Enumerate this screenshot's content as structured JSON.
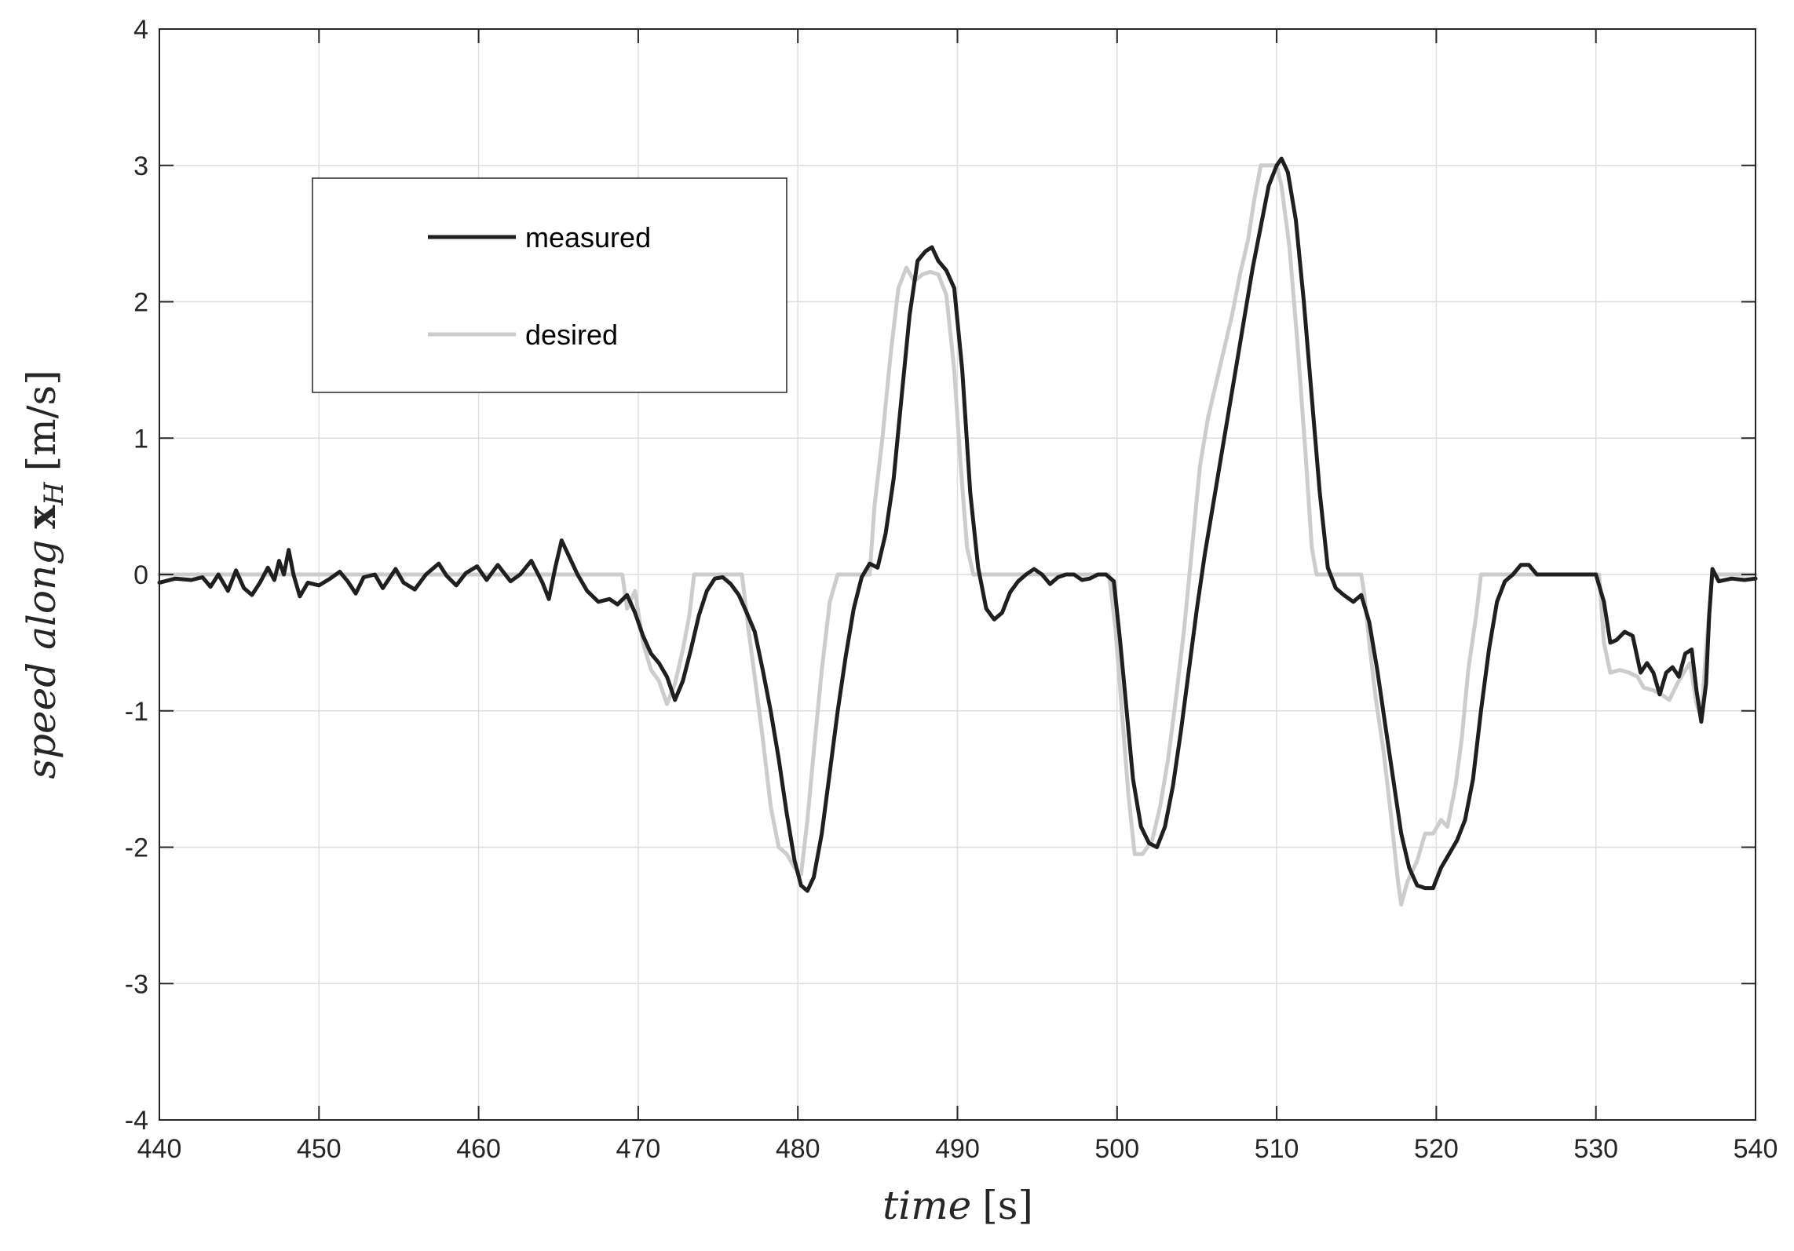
{
  "chart_data": {
    "type": "line",
    "title": "",
    "xlabel": {
      "italic": "time",
      "unit": "[s]"
    },
    "ylabel": {
      "italic_prefix": "speed along",
      "bold_symbol": "x",
      "subscript": "H",
      "unit": "[m/s]"
    },
    "xlim": [
      440,
      540
    ],
    "ylim": [
      -4,
      4
    ],
    "xticks": [
      440,
      450,
      460,
      470,
      480,
      490,
      500,
      510,
      520,
      530,
      540
    ],
    "yticks": [
      -4,
      -3,
      -2,
      -1,
      0,
      1,
      2,
      3,
      4
    ],
    "grid": true,
    "legend_position": "upper-left inside",
    "series": [
      {
        "name": "measured",
        "color": "#1f1f1f",
        "points": [
          [
            440,
            -0.06
          ],
          [
            441,
            -0.03
          ],
          [
            442,
            -0.04
          ],
          [
            442.7,
            -0.02
          ],
          [
            443.2,
            -0.09
          ],
          [
            443.7,
            0.0
          ],
          [
            444.3,
            -0.12
          ],
          [
            444.8,
            0.03
          ],
          [
            445.3,
            -0.1
          ],
          [
            445.8,
            -0.15
          ],
          [
            446.3,
            -0.06
          ],
          [
            446.8,
            0.05
          ],
          [
            447.2,
            -0.04
          ],
          [
            447.5,
            0.1
          ],
          [
            447.8,
            0.0
          ],
          [
            448.1,
            0.18
          ],
          [
            448.4,
            0.0
          ],
          [
            448.8,
            -0.16
          ],
          [
            449.3,
            -0.06
          ],
          [
            450,
            -0.08
          ],
          [
            450.7,
            -0.03
          ],
          [
            451.3,
            0.02
          ],
          [
            451.8,
            -0.05
          ],
          [
            452.3,
            -0.14
          ],
          [
            452.8,
            -0.02
          ],
          [
            453.5,
            0.0
          ],
          [
            454,
            -0.1
          ],
          [
            454.8,
            0.04
          ],
          [
            455.3,
            -0.06
          ],
          [
            456,
            -0.11
          ],
          [
            456.7,
            0.0
          ],
          [
            457.5,
            0.08
          ],
          [
            458,
            -0.01
          ],
          [
            458.6,
            -0.08
          ],
          [
            459.2,
            0.01
          ],
          [
            459.9,
            0.06
          ],
          [
            460.5,
            -0.04
          ],
          [
            461.2,
            0.07
          ],
          [
            462,
            -0.05
          ],
          [
            462.6,
            0.0
          ],
          [
            463.3,
            0.1
          ],
          [
            464,
            -0.06
          ],
          [
            464.4,
            -0.18
          ],
          [
            464.8,
            0.05
          ],
          [
            465.2,
            0.25
          ],
          [
            465.6,
            0.15
          ],
          [
            466.2,
            0.0
          ],
          [
            466.8,
            -0.12
          ],
          [
            467.5,
            -0.2
          ],
          [
            468.2,
            -0.18
          ],
          [
            468.7,
            -0.22
          ],
          [
            469.3,
            -0.15
          ],
          [
            469.8,
            -0.28
          ],
          [
            470.3,
            -0.45
          ],
          [
            470.8,
            -0.58
          ],
          [
            471.3,
            -0.65
          ],
          [
            471.8,
            -0.75
          ],
          [
            472.3,
            -0.92
          ],
          [
            472.8,
            -0.78
          ],
          [
            473.3,
            -0.55
          ],
          [
            473.8,
            -0.3
          ],
          [
            474.3,
            -0.12
          ],
          [
            474.8,
            -0.03
          ],
          [
            475.3,
            -0.02
          ],
          [
            475.8,
            -0.07
          ],
          [
            476.3,
            -0.15
          ],
          [
            476.8,
            -0.28
          ],
          [
            477.3,
            -0.42
          ],
          [
            477.8,
            -0.7
          ],
          [
            478.3,
            -1.0
          ],
          [
            478.8,
            -1.35
          ],
          [
            479.3,
            -1.75
          ],
          [
            479.8,
            -2.1
          ],
          [
            480.2,
            -2.28
          ],
          [
            480.6,
            -2.32
          ],
          [
            481.0,
            -2.22
          ],
          [
            481.5,
            -1.9
          ],
          [
            482,
            -1.45
          ],
          [
            482.5,
            -1.0
          ],
          [
            483,
            -0.6
          ],
          [
            483.5,
            -0.25
          ],
          [
            484,
            -0.02
          ],
          [
            484.5,
            0.08
          ],
          [
            485,
            0.05
          ],
          [
            485.5,
            0.3
          ],
          [
            486,
            0.7
          ],
          [
            486.5,
            1.3
          ],
          [
            487,
            1.9
          ],
          [
            487.5,
            2.3
          ],
          [
            488,
            2.37
          ],
          [
            488.4,
            2.4
          ],
          [
            488.8,
            2.3
          ],
          [
            489.3,
            2.23
          ],
          [
            489.8,
            2.1
          ],
          [
            490.3,
            1.5
          ],
          [
            490.8,
            0.6
          ],
          [
            491.3,
            0.05
          ],
          [
            491.8,
            -0.25
          ],
          [
            492.3,
            -0.33
          ],
          [
            492.8,
            -0.28
          ],
          [
            493.3,
            -0.13
          ],
          [
            493.8,
            -0.05
          ],
          [
            494.3,
            0.0
          ],
          [
            494.8,
            0.04
          ],
          [
            495.3,
            0.0
          ],
          [
            495.8,
            -0.07
          ],
          [
            496.3,
            -0.02
          ],
          [
            496.8,
            0.0
          ],
          [
            497.3,
            0.0
          ],
          [
            497.8,
            -0.04
          ],
          [
            498.3,
            -0.03
          ],
          [
            498.8,
            0.0
          ],
          [
            499.3,
            0.0
          ],
          [
            499.8,
            -0.05
          ],
          [
            500.2,
            -0.5
          ],
          [
            500.6,
            -1.0
          ],
          [
            501,
            -1.5
          ],
          [
            501.5,
            -1.85
          ],
          [
            502,
            -1.97
          ],
          [
            502.5,
            -2.0
          ],
          [
            503,
            -1.85
          ],
          [
            503.5,
            -1.55
          ],
          [
            504,
            -1.15
          ],
          [
            504.5,
            -0.7
          ],
          [
            505,
            -0.25
          ],
          [
            505.5,
            0.15
          ],
          [
            506,
            0.5
          ],
          [
            506.5,
            0.85
          ],
          [
            507,
            1.2
          ],
          [
            507.5,
            1.55
          ],
          [
            508,
            1.9
          ],
          [
            508.5,
            2.25
          ],
          [
            509,
            2.55
          ],
          [
            509.5,
            2.85
          ],
          [
            510,
            3.0
          ],
          [
            510.3,
            3.05
          ],
          [
            510.7,
            2.95
          ],
          [
            511.2,
            2.6
          ],
          [
            511.7,
            2.0
          ],
          [
            512.2,
            1.3
          ],
          [
            512.7,
            0.6
          ],
          [
            513.2,
            0.05
          ],
          [
            513.7,
            -0.1
          ],
          [
            514.2,
            -0.15
          ],
          [
            514.8,
            -0.2
          ],
          [
            515.3,
            -0.15
          ],
          [
            515.8,
            -0.35
          ],
          [
            516.3,
            -0.7
          ],
          [
            516.8,
            -1.1
          ],
          [
            517.3,
            -1.5
          ],
          [
            517.8,
            -1.9
          ],
          [
            518.3,
            -2.15
          ],
          [
            518.8,
            -2.28
          ],
          [
            519.3,
            -2.3
          ],
          [
            519.8,
            -2.3
          ],
          [
            520.3,
            -2.15
          ],
          [
            520.8,
            -2.05
          ],
          [
            521.3,
            -1.95
          ],
          [
            521.8,
            -1.8
          ],
          [
            522.3,
            -1.5
          ],
          [
            522.8,
            -1.0
          ],
          [
            523.3,
            -0.55
          ],
          [
            523.8,
            -0.2
          ],
          [
            524.3,
            -0.05
          ],
          [
            524.8,
            0.0
          ],
          [
            525.3,
            0.07
          ],
          [
            525.8,
            0.07
          ],
          [
            526.3,
            0.0
          ],
          [
            527,
            0.0
          ],
          [
            528,
            0.0
          ],
          [
            529,
            0.0
          ],
          [
            530,
            0.0
          ],
          [
            530.5,
            -0.2
          ],
          [
            530.9,
            -0.5
          ],
          [
            531.3,
            -0.48
          ],
          [
            531.8,
            -0.42
          ],
          [
            532.3,
            -0.45
          ],
          [
            532.8,
            -0.72
          ],
          [
            533.2,
            -0.65
          ],
          [
            533.6,
            -0.72
          ],
          [
            534,
            -0.88
          ],
          [
            534.4,
            -0.72
          ],
          [
            534.8,
            -0.68
          ],
          [
            535.2,
            -0.75
          ],
          [
            535.6,
            -0.58
          ],
          [
            536.0,
            -0.55
          ],
          [
            536.3,
            -0.85
          ],
          [
            536.6,
            -1.08
          ],
          [
            536.9,
            -0.8
          ],
          [
            537.1,
            -0.3
          ],
          [
            537.3,
            0.04
          ],
          [
            537.7,
            -0.05
          ],
          [
            538.5,
            -0.03
          ],
          [
            539.3,
            -0.04
          ],
          [
            540,
            -0.03
          ]
        ]
      },
      {
        "name": "desired",
        "color": "#cccccc",
        "points": [
          [
            440,
            0.0
          ],
          [
            469,
            0.0
          ],
          [
            469.3,
            -0.25
          ],
          [
            469.8,
            -0.12
          ],
          [
            470.3,
            -0.5
          ],
          [
            470.8,
            -0.7
          ],
          [
            471.3,
            -0.78
          ],
          [
            471.8,
            -0.95
          ],
          [
            472.3,
            -0.8
          ],
          [
            472.8,
            -0.55
          ],
          [
            473.2,
            -0.3
          ],
          [
            473.5,
            0.0
          ],
          [
            476.5,
            0.0
          ],
          [
            476.9,
            -0.4
          ],
          [
            477.3,
            -0.75
          ],
          [
            477.8,
            -1.2
          ],
          [
            478.3,
            -1.7
          ],
          [
            478.8,
            -2.0
          ],
          [
            479.3,
            -2.05
          ],
          [
            479.8,
            -2.15
          ],
          [
            480.2,
            -2.2
          ],
          [
            480.6,
            -1.8
          ],
          [
            481.0,
            -1.3
          ],
          [
            481.5,
            -0.7
          ],
          [
            482,
            -0.2
          ],
          [
            482.5,
            0.0
          ],
          [
            484.5,
            0.0
          ],
          [
            484.8,
            0.5
          ],
          [
            485.3,
            1.0
          ],
          [
            485.8,
            1.6
          ],
          [
            486.3,
            2.1
          ],
          [
            486.8,
            2.25
          ],
          [
            487.3,
            2.15
          ],
          [
            487.8,
            2.2
          ],
          [
            488.3,
            2.22
          ],
          [
            488.8,
            2.2
          ],
          [
            489.3,
            2.05
          ],
          [
            489.8,
            1.5
          ],
          [
            490.2,
            0.8
          ],
          [
            490.6,
            0.2
          ],
          [
            491,
            0.0
          ],
          [
            499.5,
            0.0
          ],
          [
            499.9,
            -0.4
          ],
          [
            500.3,
            -1.0
          ],
          [
            500.7,
            -1.6
          ],
          [
            501.1,
            -2.05
          ],
          [
            501.6,
            -2.05
          ],
          [
            502.2,
            -1.95
          ],
          [
            502.7,
            -1.7
          ],
          [
            503.2,
            -1.35
          ],
          [
            503.7,
            -0.9
          ],
          [
            504.2,
            -0.4
          ],
          [
            504.7,
            0.2
          ],
          [
            505.2,
            0.8
          ],
          [
            505.7,
            1.15
          ],
          [
            506.2,
            1.4
          ],
          [
            506.7,
            1.65
          ],
          [
            507.2,
            1.9
          ],
          [
            507.7,
            2.2
          ],
          [
            508.2,
            2.45
          ],
          [
            508.6,
            2.75
          ],
          [
            509,
            3.0
          ],
          [
            510,
            3.0
          ],
          [
            510.3,
            2.85
          ],
          [
            510.8,
            2.4
          ],
          [
            511.3,
            1.7
          ],
          [
            511.8,
            0.9
          ],
          [
            512.2,
            0.2
          ],
          [
            512.5,
            0.0
          ],
          [
            515.3,
            0.0
          ],
          [
            515.5,
            -0.15
          ],
          [
            515.8,
            -0.5
          ],
          [
            516.2,
            -0.9
          ],
          [
            516.7,
            -1.3
          ],
          [
            517.1,
            -1.7
          ],
          [
            517.6,
            -2.25
          ],
          [
            517.8,
            -2.42
          ],
          [
            518.2,
            -2.25
          ],
          [
            518.8,
            -2.1
          ],
          [
            519.3,
            -1.9
          ],
          [
            519.8,
            -1.9
          ],
          [
            520.3,
            -1.8
          ],
          [
            520.7,
            -1.85
          ],
          [
            521.2,
            -1.55
          ],
          [
            521.6,
            -1.2
          ],
          [
            522,
            -0.7
          ],
          [
            522.5,
            -0.3
          ],
          [
            522.8,
            0.0
          ],
          [
            530.2,
            0.0
          ],
          [
            530.5,
            -0.5
          ],
          [
            530.9,
            -0.72
          ],
          [
            531.5,
            -0.7
          ],
          [
            532.1,
            -0.72
          ],
          [
            532.6,
            -0.75
          ],
          [
            533,
            -0.83
          ],
          [
            533.6,
            -0.85
          ],
          [
            534.1,
            -0.88
          ],
          [
            534.6,
            -0.92
          ],
          [
            535.1,
            -0.8
          ],
          [
            535.5,
            -0.72
          ],
          [
            535.9,
            -0.65
          ],
          [
            536.3,
            -0.95
          ],
          [
            536.6,
            -1.05
          ],
          [
            536.9,
            -0.55
          ],
          [
            537.3,
            0.0
          ],
          [
            540,
            0.0
          ]
        ]
      }
    ]
  }
}
